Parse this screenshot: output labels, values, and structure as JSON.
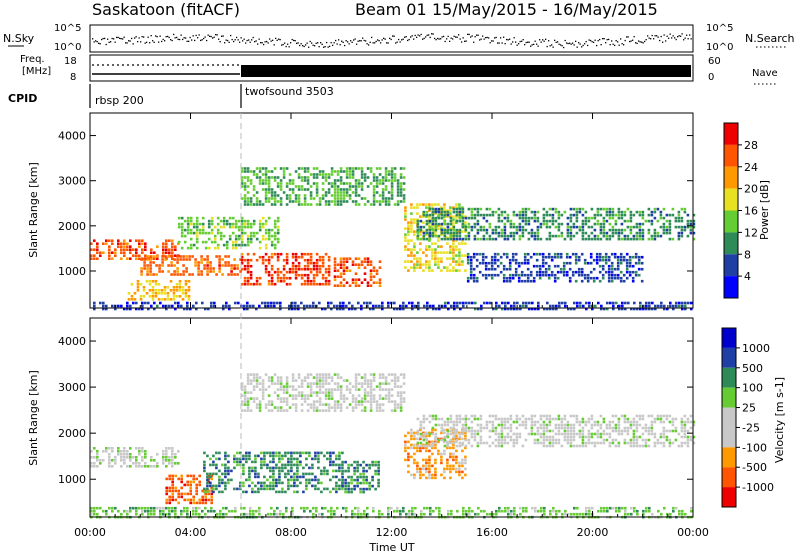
{
  "header": {
    "station": "Saskatoon (fitACF)",
    "beam": "Beam 01",
    "date_range": "15/May/2015 - 16/May/2015"
  },
  "top_panels": {
    "nsky_label": "N.Sky",
    "nsky_ticks": [
      "10^5",
      "10^0"
    ],
    "nsearch_label": "N.Search",
    "nsearch_ticks": [
      "10^5",
      "10^0"
    ],
    "freq_label": "Freq.",
    "freq_unit": "[MHz]",
    "freq_ticks": [
      "18",
      "8"
    ],
    "nave_label": "Nave",
    "nave_ticks": [
      "60",
      "0"
    ],
    "cpid_label": "CPID",
    "cpid_segments": [
      {
        "name": "rbsp 200",
        "start_hour": 0,
        "end_hour": 6
      },
      {
        "name": "twofsound 3503",
        "start_hour": 6,
        "end_hour": 24
      }
    ]
  },
  "colors": {
    "power": [
      "#0000ff",
      "#1f3fa5",
      "#2e8b57",
      "#66cc33",
      "#e8e020",
      "#ff9900",
      "#ff5500",
      "#ee0000"
    ],
    "velocity": [
      "#ee0000",
      "#ff5500",
      "#ff9900",
      "#c8c8c8",
      "#c8c8c8",
      "#66cc33",
      "#2e8b57",
      "#1f3fa5",
      "#0000cc"
    ]
  },
  "chart_data": [
    {
      "type": "heatmap",
      "panel": "power",
      "ylabel": "Slant Range [km]",
      "ylim": [
        180,
        4500
      ],
      "yticks": [
        "4000",
        "3000",
        "2000",
        "1000"
      ],
      "xlim_hours": [
        0,
        24
      ],
      "xticks": [
        "00:00",
        "04:00",
        "08:00",
        "12:00",
        "16:00",
        "20:00",
        "00:00"
      ],
      "colorbar_label": "Power [dB]",
      "colorbar_ticks": [
        "28",
        "24",
        "20",
        "16",
        "12",
        "8",
        "4"
      ],
      "regions": [
        {
          "t0": 0.0,
          "t1": 3.5,
          "r0": 1250,
          "r1": 1700,
          "value": 26
        },
        {
          "t0": 2.0,
          "t1": 6.0,
          "r0": 900,
          "r1": 1350,
          "value": 25
        },
        {
          "t0": 6.0,
          "t1": 9.5,
          "r0": 700,
          "r1": 1400,
          "value": 27
        },
        {
          "t0": 9.7,
          "t1": 11.5,
          "r0": 700,
          "r1": 1300,
          "value": 26
        },
        {
          "t0": 1.5,
          "t1": 4.0,
          "r0": 350,
          "r1": 800,
          "value": 20
        },
        {
          "t0": 6.0,
          "t1": 12.5,
          "r0": 2500,
          "r1": 3300,
          "value": 12
        },
        {
          "t0": 3.5,
          "t1": 7.5,
          "r0": 1500,
          "r1": 2200,
          "value": 14
        },
        {
          "t0": 12.5,
          "t1": 15.0,
          "r0": 1000,
          "r1": 2500,
          "value": 18
        },
        {
          "t0": 13.0,
          "t1": 24.0,
          "r0": 1700,
          "r1": 2400,
          "value": 10
        },
        {
          "t0": 15.0,
          "t1": 22.0,
          "r0": 800,
          "r1": 1400,
          "value": 6
        },
        {
          "t0": 0.0,
          "t1": 24.0,
          "r0": 180,
          "r1": 320,
          "value": 5
        }
      ]
    },
    {
      "type": "heatmap",
      "panel": "velocity",
      "ylabel": "Slant Range [km]",
      "ylim": [
        180,
        4500
      ],
      "yticks": [
        "4000",
        "3000",
        "2000",
        "1000"
      ],
      "xlim_hours": [
        0,
        24
      ],
      "xticks": [
        "00:00",
        "04:00",
        "08:00",
        "12:00",
        "16:00",
        "20:00",
        "00:00"
      ],
      "xlabel": "Time UT",
      "colorbar_label": "Velocity [m s-1]",
      "colorbar_ticks": [
        "1000",
        "500",
        "100",
        "25",
        "-25",
        "-100",
        "-500",
        "-1000"
      ],
      "regions": [
        {
          "t0": 0.0,
          "t1": 3.5,
          "r0": 1250,
          "r1": 1700,
          "value": 0
        },
        {
          "t0": 3.0,
          "t1": 4.8,
          "r0": 500,
          "r1": 1100,
          "value": -300
        },
        {
          "t0": 4.5,
          "t1": 10.0,
          "r0": 700,
          "r1": 1600,
          "value": 150
        },
        {
          "t0": 10.0,
          "t1": 11.5,
          "r0": 700,
          "r1": 1400,
          "value": 100
        },
        {
          "t0": 6.0,
          "t1": 12.5,
          "r0": 2500,
          "r1": 3300,
          "value": 0
        },
        {
          "t0": 12.5,
          "t1": 15.0,
          "r0": 1000,
          "r1": 2100,
          "value": -200
        },
        {
          "t0": 13.0,
          "t1": 24.0,
          "r0": 1700,
          "r1": 2400,
          "value": 0
        },
        {
          "t0": 0.0,
          "t1": 24.0,
          "r0": 180,
          "r1": 400,
          "value": 50
        }
      ]
    }
  ]
}
